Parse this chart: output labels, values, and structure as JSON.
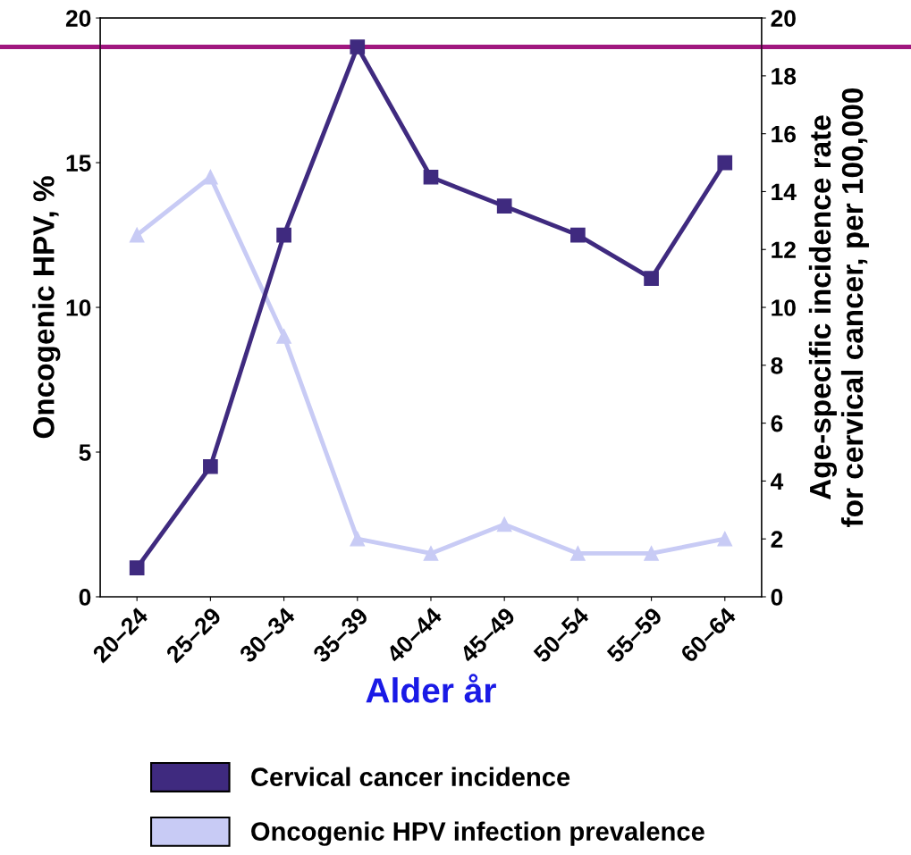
{
  "chart_data": {
    "type": "line",
    "categories": [
      "20–24",
      "25–29",
      "30–34",
      "35–39",
      "40–44",
      "45–49",
      "50–54",
      "55–59",
      "60–64"
    ],
    "series": [
      {
        "name": "Cervical cancer incidence",
        "color": "#3f2a7f",
        "axis": "y2",
        "marker": "square",
        "values": [
          1,
          4.5,
          12.5,
          19,
          14.5,
          13.5,
          12.5,
          11,
          15
        ]
      },
      {
        "name": "Oncogenic HPV infection prevalence",
        "color": "#c8cbf5",
        "marker": "triangle",
        "values": [
          12.5,
          14.5,
          9,
          2,
          1.5,
          2.5,
          1.5,
          1.5,
          2
        ]
      }
    ],
    "xlabel": "Alder år",
    "ylabel": "Oncogenic HPV, %",
    "y2label": "Age-specific incidence rate\nfor cervical cancer, per 100,000",
    "ylim": [
      0,
      20
    ],
    "yticks": [
      0,
      5,
      10,
      15,
      20
    ],
    "y2lim": [
      0,
      20
    ],
    "y2ticks": [
      0,
      2,
      4,
      6,
      8,
      10,
      12,
      14,
      16,
      18,
      20
    ],
    "ref_lines": [
      {
        "axis": "y2",
        "value": 19,
        "color": "#a0177f"
      }
    ],
    "legend": "bottom",
    "grid": false
  }
}
